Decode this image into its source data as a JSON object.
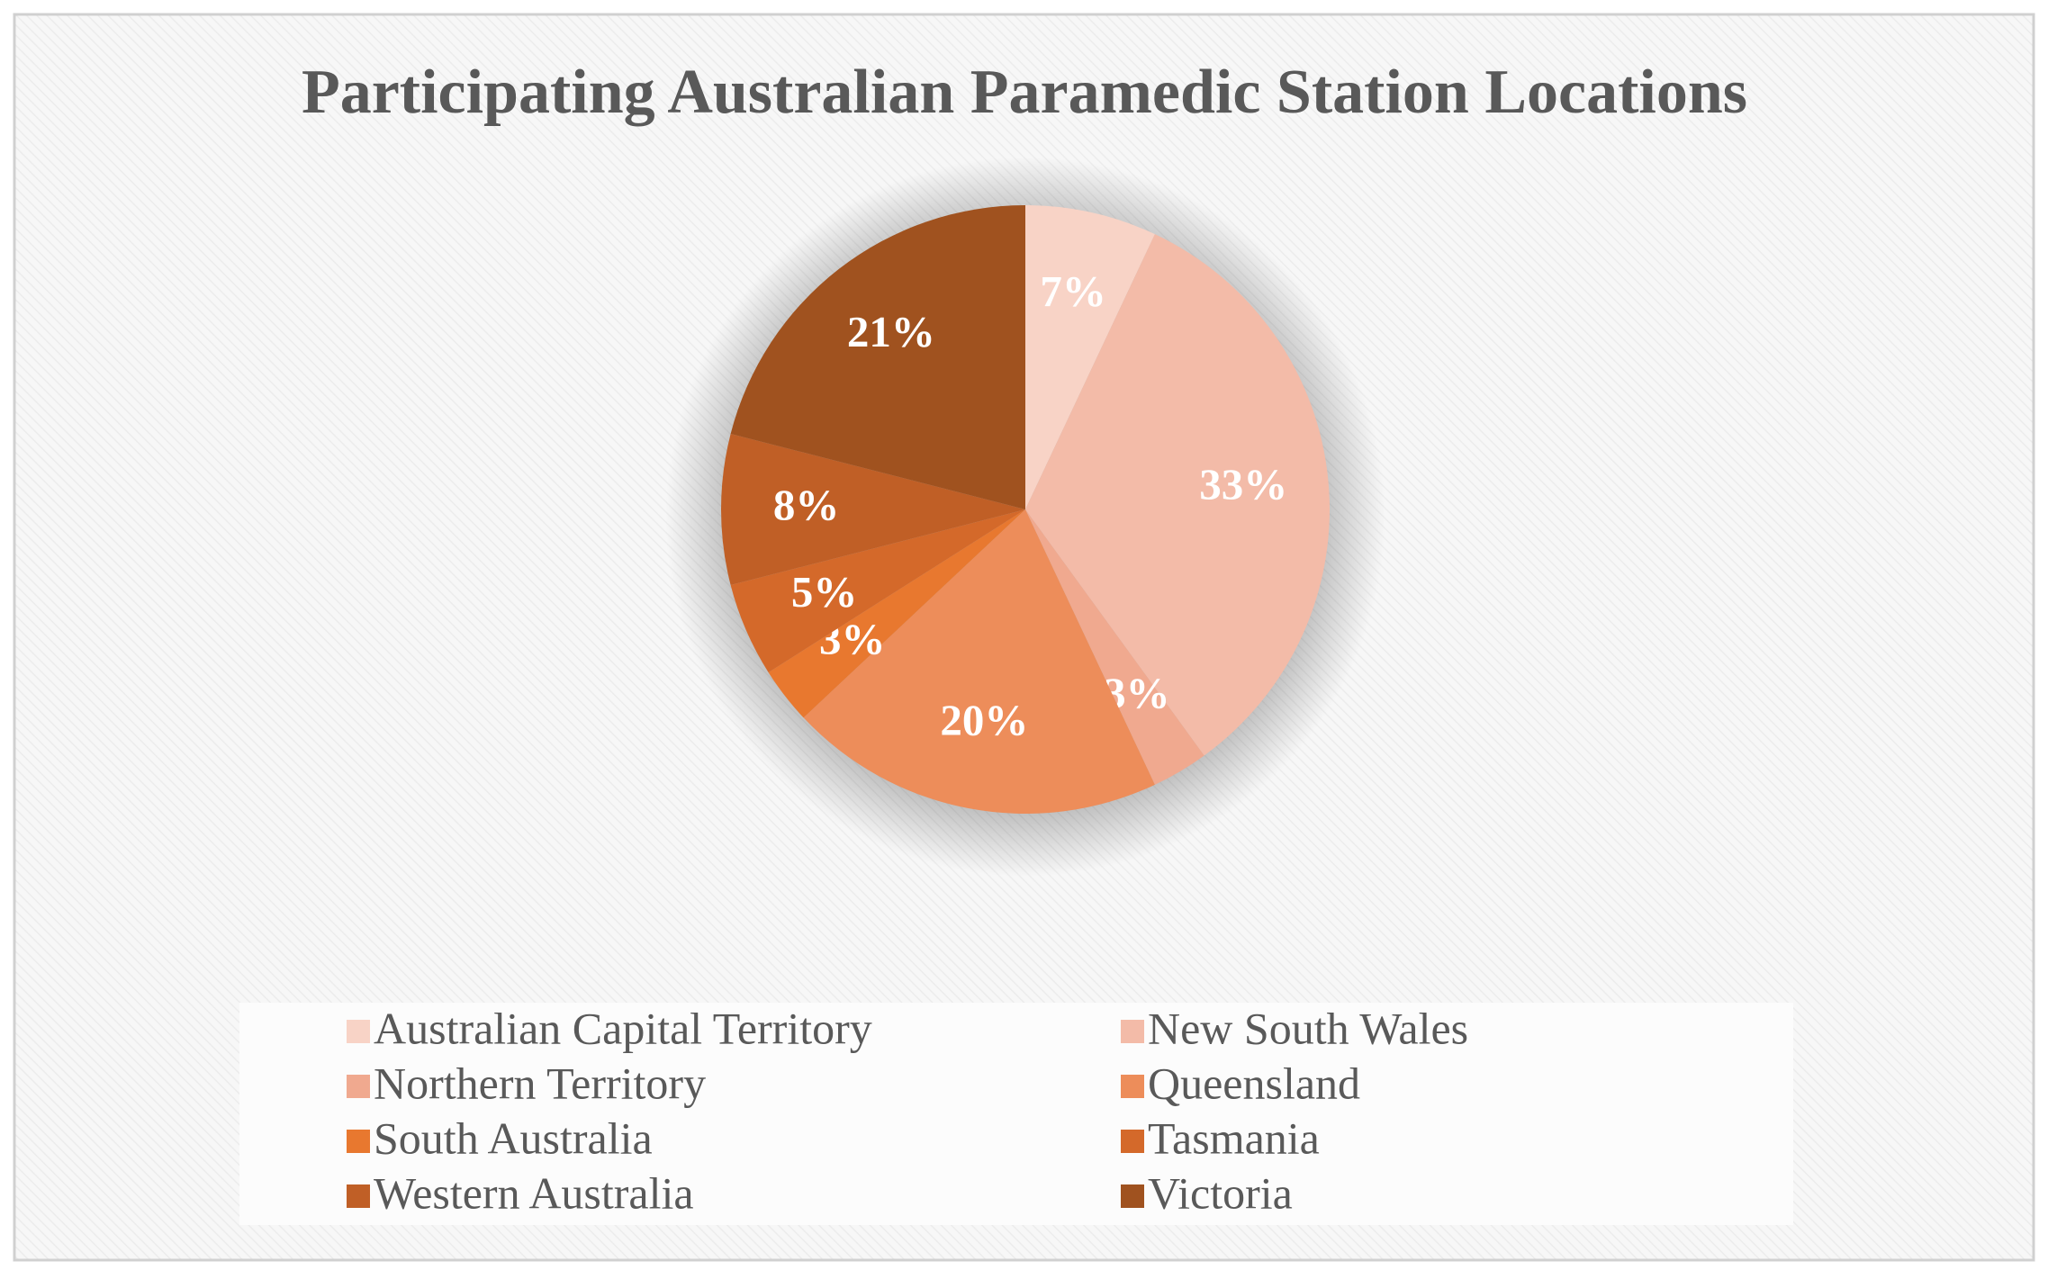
{
  "chart_data": {
    "type": "pie",
    "title": "Participating Australian Paramedic Station Locations",
    "categories": [
      "Australian Capital Territory",
      "New South Wales",
      "Northern Territory",
      "Queensland",
      "South Australia",
      "Tasmania",
      "Western Australia",
      "Victoria"
    ],
    "values": [
      7,
      33,
      3,
      20,
      3,
      5,
      8,
      21
    ],
    "value_labels": [
      "7%",
      "33%",
      "3%",
      "20%",
      "3%",
      "5%",
      "8%",
      "21%"
    ],
    "colors": [
      "#f8d3c6",
      "#f3bba8",
      "#f0a98f",
      "#ed8d5a",
      "#e8782f",
      "#d4692a",
      "#c05f26",
      "#a0521f"
    ],
    "legend": "bottom"
  }
}
